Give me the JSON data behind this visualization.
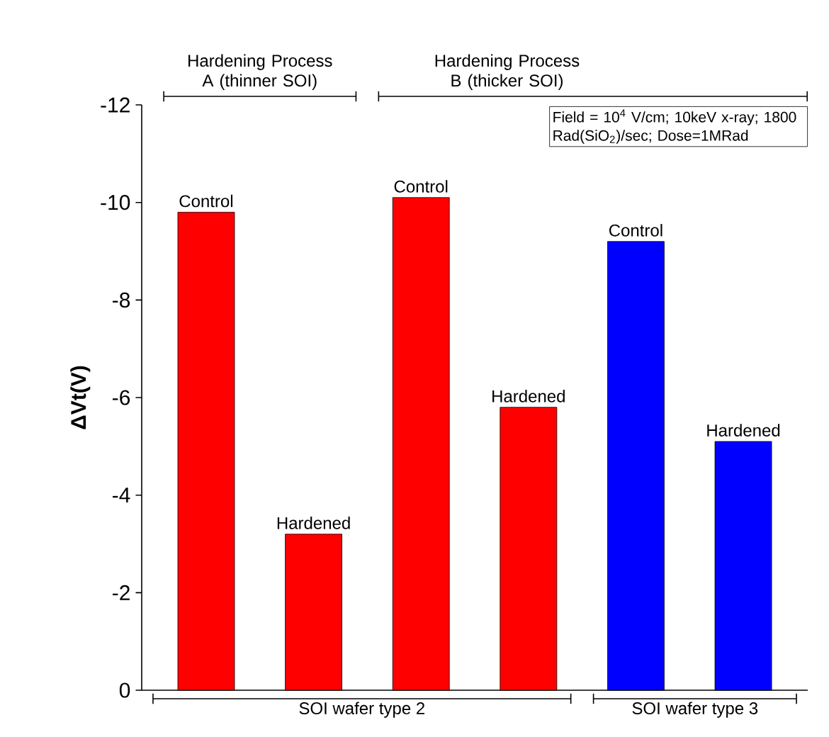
{
  "chart_data": {
    "type": "bar",
    "categories": [
      "Control",
      "Hardened",
      "Control",
      "Hardened",
      "Control",
      "Hardened"
    ],
    "values": [
      -9.8,
      -3.2,
      -10.1,
      -5.8,
      -9.2,
      -5.1
    ],
    "colors": [
      "#ff0000",
      "#ff0000",
      "#ff0000",
      "#ff0000",
      "#0000ff",
      "#0000ff"
    ],
    "ylabel": "ΔVt(V)",
    "ylim": [
      0,
      -12
    ],
    "yticks": [
      0,
      -2,
      -4,
      -6,
      -8,
      -10,
      -12
    ],
    "annotations": [
      "Hardening Process A (thinner SOI)",
      "Hardening Process B (thicker SOI)",
      "Field = 10$^{4}$ V/cm; 10keV x-ray; 1800 Rad(SiO$_{2}$)/sec; Dose=1MRad",
      "SOI wafer type 2",
      "SOI wafer type 3"
    ],
    "grid": false
  }
}
